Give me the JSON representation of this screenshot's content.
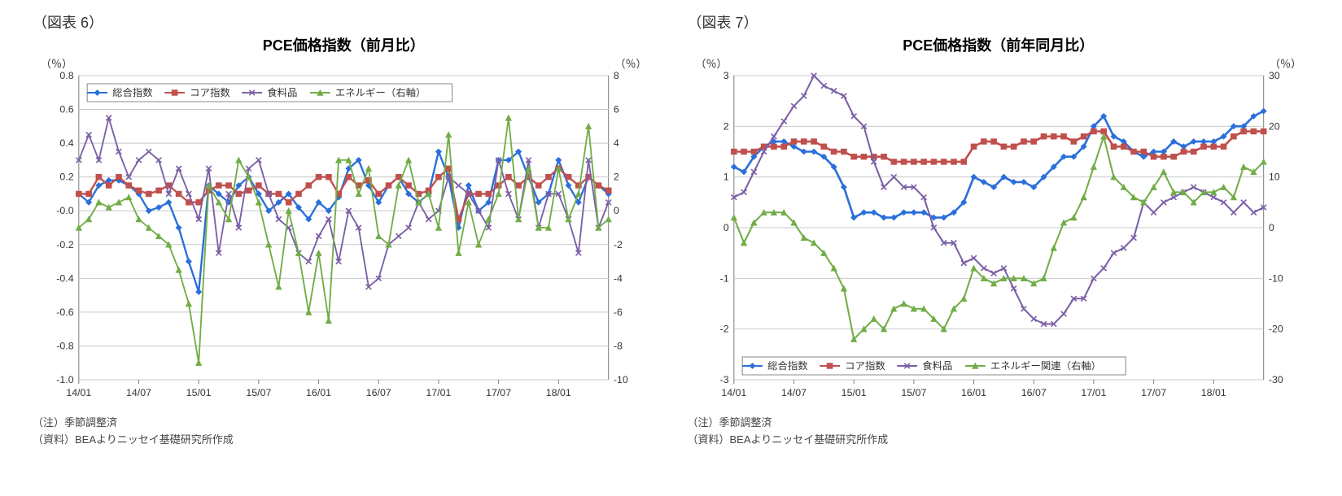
{
  "chart6": {
    "fig_label": "（図表 6）",
    "title": "PCE価格指数（前月比）",
    "left_unit": "（％）",
    "right_unit": "（％）",
    "note1": "（注）季節調整済",
    "note2": "（資料）BEAよりニッセイ基礎研究所作成",
    "type": "line",
    "x_ticks": [
      "14/01",
      "14/07",
      "15/01",
      "15/07",
      "16/01",
      "16/07",
      "17/01",
      "17/07",
      "18/01"
    ],
    "left_axis": {
      "min": -1.0,
      "max": 0.8,
      "step": 0.2
    },
    "right_axis": {
      "min": -10,
      "max": 8,
      "step": 2
    },
    "plot_border_color": "#808080",
    "grid_color": "#c8c8c8",
    "background_color": "#ffffff",
    "legend": {
      "position": "top-inside",
      "items": [
        {
          "label": "総合指数",
          "color": "#2a6fdb",
          "marker": "diamond"
        },
        {
          "label": "コア指数",
          "color": "#c0504d",
          "marker": "square"
        },
        {
          "label": "食料品",
          "color": "#7b5fa6",
          "marker": "x"
        },
        {
          "label": "エネルギー（右軸）",
          "color": "#71ad47",
          "marker": "triangle"
        }
      ]
    },
    "series": {
      "total": {
        "color": "#2a6fdb",
        "marker": "diamond",
        "width": 2.3,
        "axis": "left",
        "values": [
          0.1,
          0.05,
          0.15,
          0.18,
          0.18,
          0.15,
          0.1,
          0.0,
          0.02,
          0.05,
          -0.1,
          -0.3,
          -0.48,
          0.15,
          0.1,
          0.05,
          0.15,
          0.2,
          0.1,
          0.0,
          0.05,
          0.1,
          0.02,
          -0.05,
          0.05,
          0.0,
          0.08,
          0.25,
          0.3,
          0.15,
          0.05,
          0.15,
          0.2,
          0.1,
          0.05,
          0.1,
          0.35,
          0.2,
          -0.1,
          0.15,
          0.0,
          0.05,
          0.3,
          0.3,
          0.35,
          0.2,
          0.05,
          0.1,
          0.3,
          0.15,
          0.05,
          0.2,
          0.15,
          0.1
        ]
      },
      "core": {
        "color": "#c0504d",
        "marker": "square",
        "width": 2.3,
        "axis": "left",
        "values": [
          0.1,
          0.1,
          0.2,
          0.15,
          0.2,
          0.15,
          0.12,
          0.1,
          0.12,
          0.15,
          0.1,
          0.05,
          0.05,
          0.12,
          0.15,
          0.15,
          0.1,
          0.12,
          0.15,
          0.1,
          0.1,
          0.05,
          0.1,
          0.15,
          0.2,
          0.2,
          0.1,
          0.2,
          0.15,
          0.18,
          0.1,
          0.15,
          0.2,
          0.15,
          0.1,
          0.12,
          0.2,
          0.25,
          -0.05,
          0.1,
          0.1,
          0.1,
          0.15,
          0.2,
          0.15,
          0.2,
          0.15,
          0.2,
          0.25,
          0.2,
          0.15,
          0.2,
          0.15,
          0.12
        ]
      },
      "food": {
        "color": "#7b5fa6",
        "marker": "x",
        "width": 1.8,
        "axis": "left",
        "values": [
          0.3,
          0.45,
          0.3,
          0.55,
          0.35,
          0.2,
          0.3,
          0.35,
          0.3,
          0.1,
          0.25,
          0.1,
          -0.05,
          0.25,
          -0.25,
          0.1,
          -0.1,
          0.25,
          0.3,
          0.1,
          -0.05,
          -0.1,
          -0.25,
          -0.3,
          -0.15,
          -0.05,
          -0.3,
          0.0,
          -0.1,
          -0.45,
          -0.4,
          -0.2,
          -0.15,
          -0.1,
          0.05,
          -0.05,
          0.0,
          0.2,
          0.15,
          0.1,
          0.0,
          -0.1,
          0.3,
          0.1,
          -0.05,
          0.3,
          -0.1,
          0.1,
          0.1,
          -0.05,
          -0.25,
          0.3,
          -0.1,
          0.05
        ]
      },
      "energy": {
        "color": "#71ad47",
        "marker": "triangle",
        "width": 1.8,
        "axis": "right",
        "values": [
          -1.0,
          -0.5,
          0.5,
          0.2,
          0.5,
          0.8,
          -0.5,
          -1.0,
          -1.5,
          -2.0,
          -3.5,
          -5.5,
          -9.0,
          1.5,
          0.5,
          -0.5,
          3.0,
          2.0,
          0.5,
          -2.0,
          -4.5,
          0.0,
          -2.5,
          -6.0,
          -2.5,
          -6.5,
          3.0,
          3.0,
          1.0,
          2.5,
          -1.5,
          -2.0,
          1.5,
          3.0,
          0.5,
          1.0,
          -1.0,
          4.5,
          -2.5,
          0.5,
          -2.0,
          -0.5,
          1.0,
          5.5,
          -0.5,
          2.5,
          -1.0,
          -1.0,
          2.5,
          -0.5,
          1.0,
          5.0,
          -1.0,
          -0.5
        ]
      }
    }
  },
  "chart7": {
    "fig_label": "（図表 7）",
    "title": "PCE価格指数（前年同月比）",
    "left_unit": "（％）",
    "right_unit": "（％）",
    "note1": "（注）季節調整済",
    "note2": "（資料）BEAよりニッセイ基礎研究所作成",
    "type": "line",
    "x_ticks": [
      "14/01",
      "14/07",
      "15/01",
      "15/07",
      "16/01",
      "16/07",
      "17/01",
      "17/07",
      "18/01"
    ],
    "left_axis": {
      "min": -3,
      "max": 3,
      "step": 1
    },
    "right_axis": {
      "min": -30,
      "max": 30,
      "step": 10
    },
    "plot_border_color": "#808080",
    "grid_color": "#c8c8c8",
    "background_color": "#ffffff",
    "legend": {
      "position": "bottom-inside",
      "items": [
        {
          "label": "総合指数",
          "color": "#2a6fdb",
          "marker": "diamond"
        },
        {
          "label": "コア指数",
          "color": "#c0504d",
          "marker": "square"
        },
        {
          "label": "食料品",
          "color": "#7b5fa6",
          "marker": "x"
        },
        {
          "label": "エネルギー関連（右軸）",
          "color": "#71ad47",
          "marker": "triangle"
        }
      ]
    },
    "series": {
      "total": {
        "color": "#2a6fdb",
        "marker": "diamond",
        "width": 2.6,
        "axis": "left",
        "values": [
          1.2,
          1.1,
          1.4,
          1.6,
          1.7,
          1.7,
          1.6,
          1.5,
          1.5,
          1.4,
          1.2,
          0.8,
          0.2,
          0.3,
          0.3,
          0.2,
          0.2,
          0.3,
          0.3,
          0.3,
          0.2,
          0.2,
          0.3,
          0.5,
          1.0,
          0.9,
          0.8,
          1.0,
          0.9,
          0.9,
          0.8,
          1.0,
          1.2,
          1.4,
          1.4,
          1.6,
          2.0,
          2.2,
          1.8,
          1.7,
          1.5,
          1.4,
          1.5,
          1.5,
          1.7,
          1.6,
          1.7,
          1.7,
          1.7,
          1.8,
          2.0,
          2.0,
          2.2,
          2.3
        ]
      },
      "core": {
        "color": "#c0504d",
        "marker": "square",
        "width": 2.6,
        "axis": "left",
        "values": [
          1.5,
          1.5,
          1.5,
          1.6,
          1.6,
          1.6,
          1.7,
          1.7,
          1.7,
          1.6,
          1.5,
          1.5,
          1.4,
          1.4,
          1.4,
          1.4,
          1.3,
          1.3,
          1.3,
          1.3,
          1.3,
          1.3,
          1.3,
          1.3,
          1.6,
          1.7,
          1.7,
          1.6,
          1.6,
          1.7,
          1.7,
          1.8,
          1.8,
          1.8,
          1.7,
          1.8,
          1.9,
          1.9,
          1.6,
          1.6,
          1.5,
          1.5,
          1.4,
          1.4,
          1.4,
          1.5,
          1.5,
          1.6,
          1.6,
          1.6,
          1.8,
          1.9,
          1.9,
          1.9
        ]
      },
      "food": {
        "color": "#7b5fa6",
        "marker": "x",
        "width": 2.0,
        "axis": "left",
        "values": [
          0.6,
          0.7,
          1.1,
          1.5,
          1.8,
          2.1,
          2.4,
          2.6,
          3.0,
          2.8,
          2.7,
          2.6,
          2.2,
          2.0,
          1.3,
          0.8,
          1.0,
          0.8,
          0.8,
          0.6,
          0.0,
          -0.3,
          -0.3,
          -0.7,
          -0.6,
          -0.8,
          -0.9,
          -0.8,
          -1.2,
          -1.6,
          -1.8,
          -1.9,
          -1.9,
          -1.7,
          -1.4,
          -1.4,
          -1.0,
          -0.8,
          -0.5,
          -0.4,
          -0.2,
          0.5,
          0.3,
          0.5,
          0.6,
          0.7,
          0.8,
          0.7,
          0.6,
          0.5,
          0.3,
          0.5,
          0.3,
          0.4
        ]
      },
      "energy": {
        "color": "#71ad47",
        "marker": "triangle",
        "width": 2.0,
        "axis": "right",
        "values": [
          2,
          -3,
          1,
          3,
          3,
          3,
          1,
          -2,
          -3,
          -5,
          -8,
          -12,
          -22,
          -20,
          -18,
          -20,
          -16,
          -15,
          -16,
          -16,
          -18,
          -20,
          -16,
          -14,
          -8,
          -10,
          -11,
          -10,
          -10,
          -10,
          -11,
          -10,
          -4,
          1,
          2,
          6,
          12,
          18,
          10,
          8,
          6,
          5,
          8,
          11,
          7,
          7,
          5,
          7,
          7,
          8,
          6,
          12,
          11,
          13
        ]
      }
    }
  }
}
